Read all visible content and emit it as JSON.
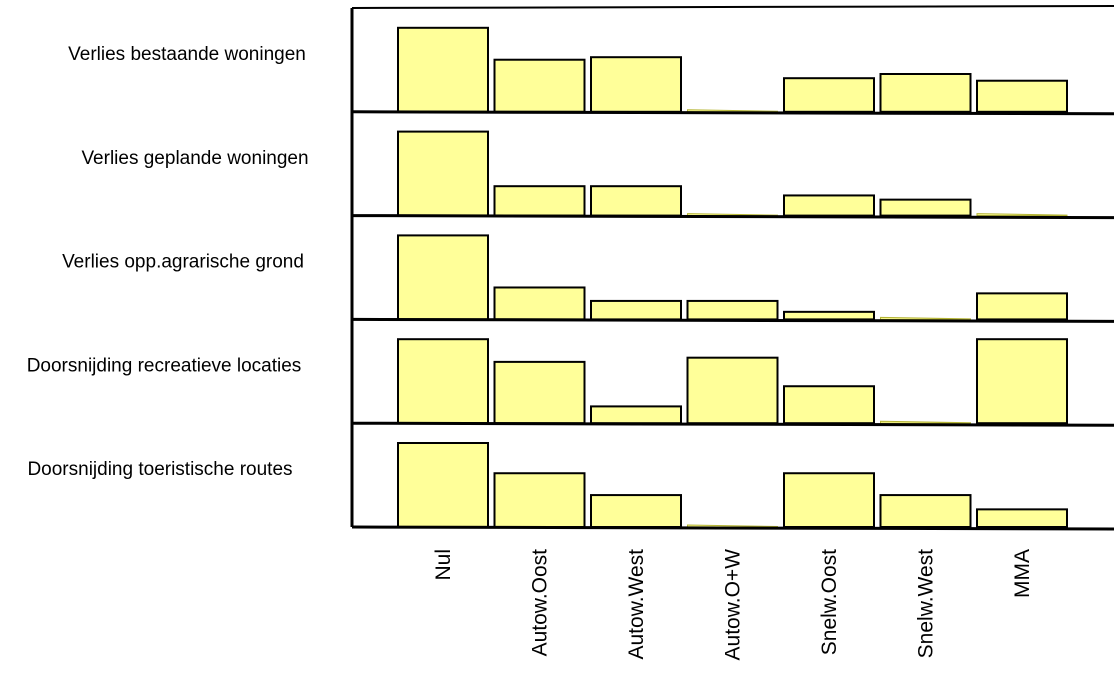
{
  "chart_data": {
    "type": "bar",
    "categories": [
      "Nul",
      "Autow.Oost",
      "Autow.West",
      "Autow.O+W",
      "Snelw.Oost",
      "Snelw.West",
      "MMA"
    ],
    "series": [
      {
        "name": "Verlies bestaande woningen",
        "values": [
          1.0,
          0.62,
          0.65,
          0.0,
          0.4,
          0.45,
          0.37
        ]
      },
      {
        "name": "Verlies geplande woningen",
        "values": [
          1.0,
          0.35,
          0.35,
          0.0,
          0.24,
          0.19,
          0.0
        ]
      },
      {
        "name": "Verlies opp.agrarische grond",
        "values": [
          1.0,
          0.38,
          0.22,
          0.22,
          0.09,
          0.0,
          0.31
        ]
      },
      {
        "name": "Doorsnijding recreatieve locaties",
        "values": [
          1.0,
          0.73,
          0.2,
          0.78,
          0.44,
          0.0,
          1.0
        ]
      },
      {
        "name": "Doorsnijding toeristische routes",
        "values": [
          1.0,
          0.64,
          0.38,
          0.0,
          0.64,
          0.38,
          0.21
        ]
      }
    ],
    "ylim": [
      0,
      1
    ],
    "bar_color": "#ffff99",
    "bar_stroke": "#000000",
    "grid": false,
    "legend": "none"
  }
}
